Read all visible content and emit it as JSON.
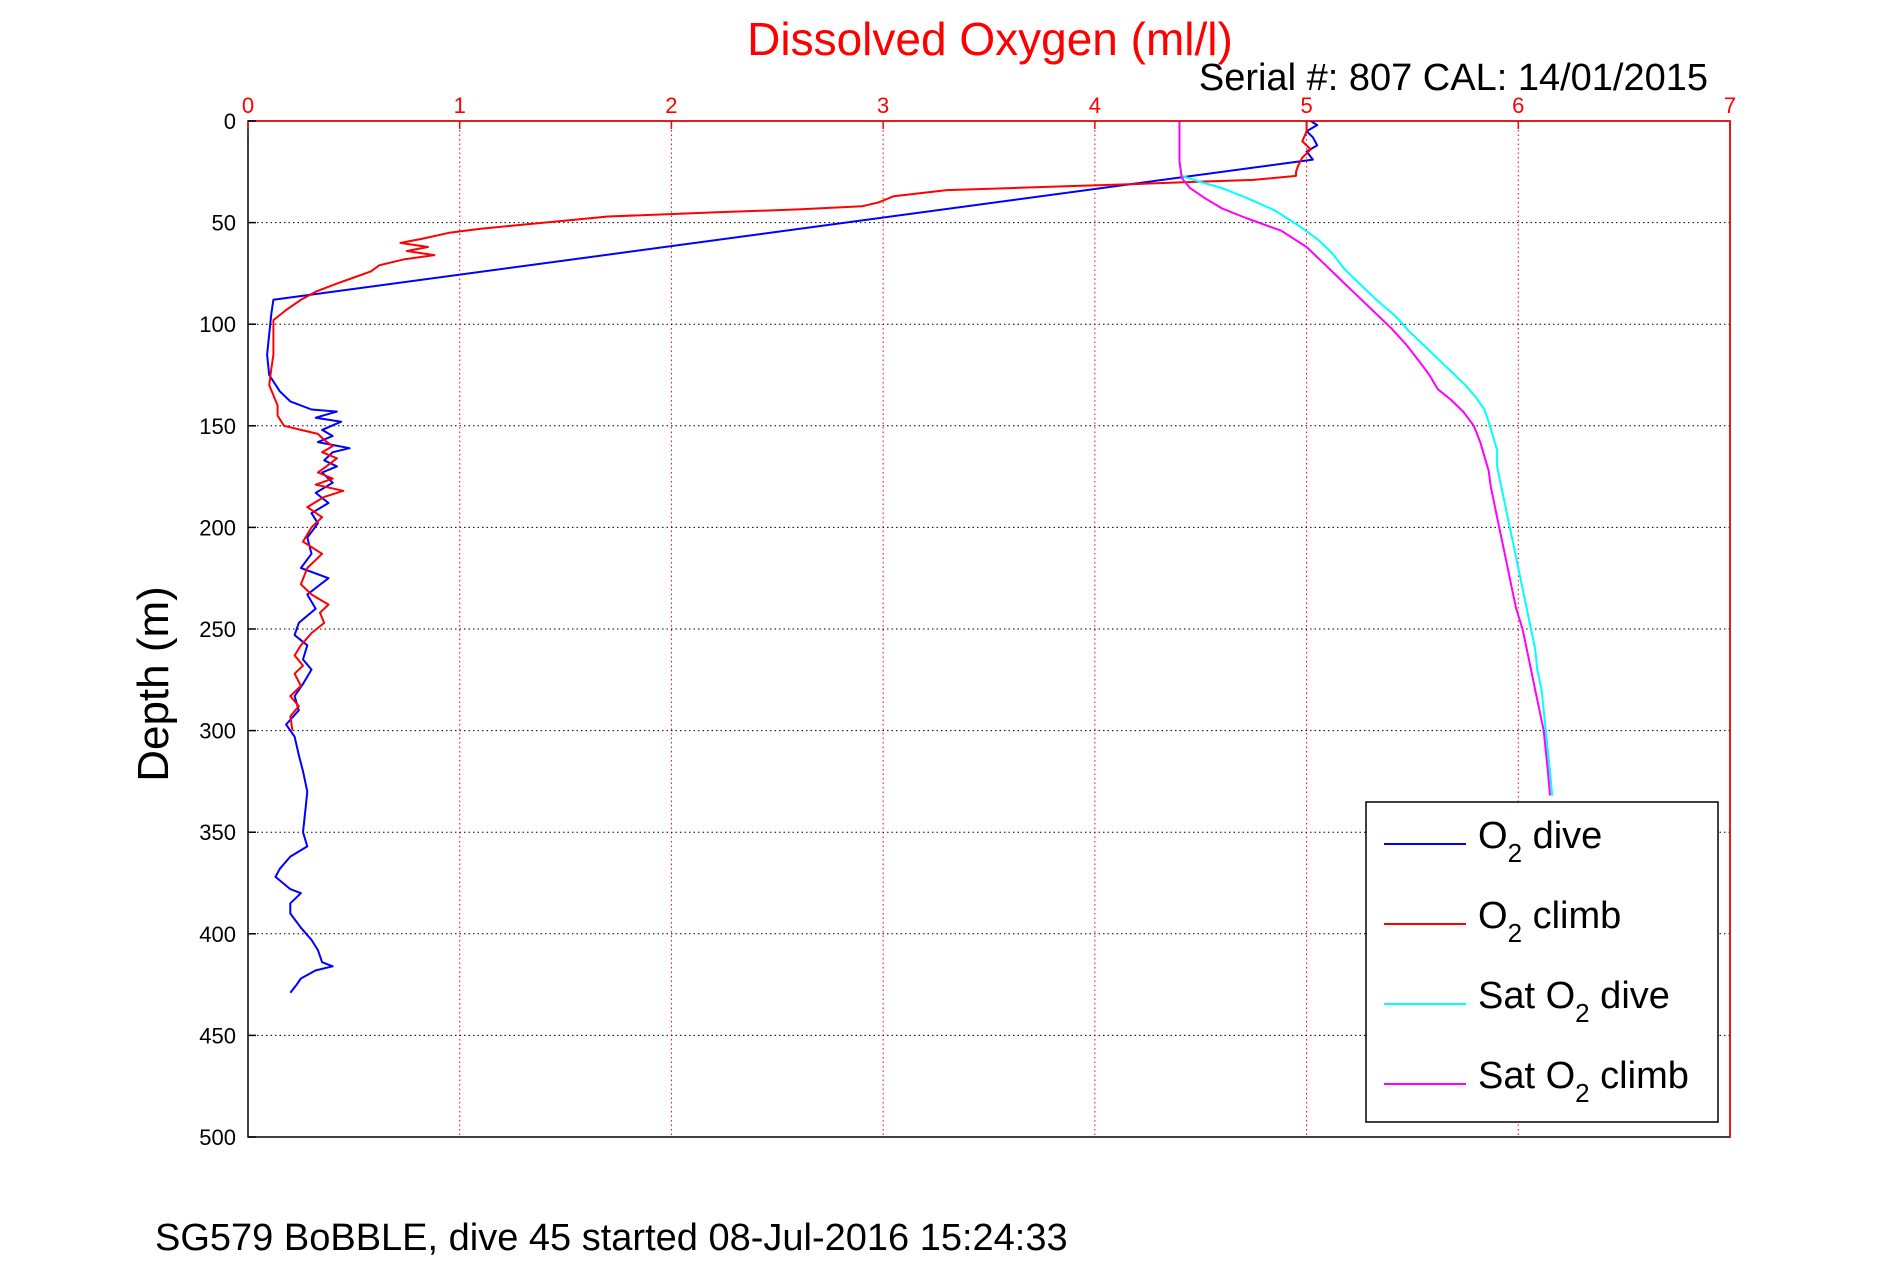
{
  "chart_data": {
    "type": "line",
    "title": "Dissolved Oxygen (ml/l)",
    "serial_text": "Serial #: 807  CAL: 14/01/2015",
    "ylabel": "Depth (m)",
    "xlim": [
      0,
      7
    ],
    "ylim": [
      0,
      500
    ],
    "y_reversed": true,
    "x_axis_position": "top",
    "xticks": [
      "0",
      "1",
      "2",
      "3",
      "4",
      "5",
      "6",
      "7"
    ],
    "yticks": [
      "0",
      "50",
      "100",
      "150",
      "200",
      "250",
      "300",
      "350",
      "400",
      "450",
      "500"
    ],
    "grid": true,
    "footer": "SG579 BoBBLE, dive 45 started 08-Jul-2016 15:24:33",
    "legend_position": "bottom-right",
    "legend": [
      {
        "prefix": "O",
        "sub": "2",
        "suffix": " dive",
        "color": "#0000ff"
      },
      {
        "prefix": "O",
        "sub": "2",
        "suffix": " climb",
        "color": "#ff0000"
      },
      {
        "prefix": "Sat O",
        "sub": "2",
        "suffix": " dive",
        "color": "#00ffff"
      },
      {
        "prefix": "Sat O",
        "sub": "2",
        "suffix": " climb",
        "color": "#ff00ff"
      }
    ],
    "series": [
      {
        "name": "O2 dive",
        "color": "#0000ff",
        "points": [
          [
            5.02,
            0
          ],
          [
            5.05,
            2
          ],
          [
            5.0,
            5
          ],
          [
            5.03,
            8
          ],
          [
            5.05,
            12
          ],
          [
            5.0,
            15
          ],
          [
            5.03,
            19
          ],
          [
            0.12,
            88
          ],
          [
            0.11,
            95
          ],
          [
            0.1,
            105
          ],
          [
            0.09,
            115
          ],
          [
            0.1,
            125
          ],
          [
            0.15,
            133
          ],
          [
            0.2,
            138
          ],
          [
            0.3,
            142
          ],
          [
            0.42,
            143
          ],
          [
            0.32,
            146
          ],
          [
            0.44,
            148
          ],
          [
            0.35,
            152
          ],
          [
            0.4,
            155
          ],
          [
            0.33,
            158
          ],
          [
            0.48,
            161
          ],
          [
            0.4,
            163
          ],
          [
            0.36,
            167
          ],
          [
            0.42,
            170
          ],
          [
            0.35,
            173
          ],
          [
            0.4,
            178
          ],
          [
            0.32,
            183
          ],
          [
            0.38,
            188
          ],
          [
            0.3,
            193
          ],
          [
            0.33,
            198
          ],
          [
            0.28,
            205
          ],
          [
            0.3,
            213
          ],
          [
            0.25,
            220
          ],
          [
            0.38,
            225
          ],
          [
            0.28,
            233
          ],
          [
            0.32,
            240
          ],
          [
            0.24,
            247
          ],
          [
            0.22,
            253
          ],
          [
            0.28,
            258
          ],
          [
            0.26,
            265
          ],
          [
            0.3,
            270
          ],
          [
            0.26,
            277
          ],
          [
            0.22,
            283
          ],
          [
            0.24,
            290
          ],
          [
            0.18,
            297
          ],
          [
            0.22,
            303
          ],
          [
            0.24,
            312
          ],
          [
            0.26,
            320
          ],
          [
            0.28,
            330
          ],
          [
            0.27,
            340
          ],
          [
            0.26,
            350
          ],
          [
            0.28,
            357
          ],
          [
            0.2,
            362
          ],
          [
            0.15,
            368
          ],
          [
            0.13,
            372
          ],
          [
            0.2,
            378
          ],
          [
            0.25,
            380
          ],
          [
            0.2,
            385
          ],
          [
            0.2,
            390
          ],
          [
            0.25,
            397
          ],
          [
            0.3,
            403
          ],
          [
            0.33,
            408
          ],
          [
            0.35,
            414
          ],
          [
            0.4,
            416
          ],
          [
            0.32,
            418
          ],
          [
            0.25,
            422
          ],
          [
            0.23,
            425
          ],
          [
            0.2,
            429
          ]
        ]
      },
      {
        "name": "O2 climb",
        "color": "#ff0000",
        "points": [
          [
            5.0,
            0
          ],
          [
            5.0,
            5
          ],
          [
            4.98,
            10
          ],
          [
            5.02,
            14
          ],
          [
            4.98,
            18
          ],
          [
            4.96,
            22
          ],
          [
            4.95,
            25
          ],
          [
            4.95,
            27
          ],
          [
            4.75,
            29
          ],
          [
            4.45,
            30
          ],
          [
            4.2,
            31
          ],
          [
            3.9,
            32
          ],
          [
            3.6,
            33
          ],
          [
            3.3,
            34
          ],
          [
            3.05,
            37
          ],
          [
            2.98,
            40
          ],
          [
            2.9,
            42
          ],
          [
            2.6,
            43.5
          ],
          [
            2.2,
            45
          ],
          [
            1.95,
            46
          ],
          [
            1.7,
            47
          ],
          [
            1.5,
            49
          ],
          [
            1.3,
            51
          ],
          [
            1.1,
            53
          ],
          [
            0.95,
            55
          ],
          [
            0.82,
            58
          ],
          [
            0.72,
            60
          ],
          [
            0.85,
            62
          ],
          [
            0.75,
            64
          ],
          [
            0.88,
            66
          ],
          [
            0.74,
            68
          ],
          [
            0.62,
            71
          ],
          [
            0.58,
            74
          ],
          [
            0.5,
            77
          ],
          [
            0.42,
            80
          ],
          [
            0.32,
            84
          ],
          [
            0.25,
            88
          ],
          [
            0.18,
            93
          ],
          [
            0.12,
            98
          ],
          [
            0.12,
            105
          ],
          [
            0.12,
            115
          ],
          [
            0.11,
            122
          ],
          [
            0.1,
            130
          ],
          [
            0.12,
            135
          ],
          [
            0.14,
            140
          ],
          [
            0.14,
            145
          ],
          [
            0.17,
            150
          ],
          [
            0.25,
            152
          ],
          [
            0.33,
            154
          ],
          [
            0.36,
            157
          ],
          [
            0.4,
            160
          ],
          [
            0.35,
            163
          ],
          [
            0.42,
            166
          ],
          [
            0.37,
            170
          ],
          [
            0.33,
            173
          ],
          [
            0.4,
            176
          ],
          [
            0.32,
            179
          ],
          [
            0.45,
            182
          ],
          [
            0.36,
            185
          ],
          [
            0.28,
            190
          ],
          [
            0.35,
            195
          ],
          [
            0.3,
            200
          ],
          [
            0.26,
            207
          ],
          [
            0.35,
            213
          ],
          [
            0.28,
            220
          ],
          [
            0.25,
            228
          ],
          [
            0.3,
            233
          ],
          [
            0.38,
            238
          ],
          [
            0.34,
            242
          ],
          [
            0.36,
            247
          ],
          [
            0.3,
            252
          ],
          [
            0.25,
            258
          ],
          [
            0.22,
            263
          ],
          [
            0.26,
            268
          ],
          [
            0.22,
            272
          ],
          [
            0.25,
            278
          ],
          [
            0.2,
            283
          ],
          [
            0.24,
            288
          ],
          [
            0.2,
            293
          ],
          [
            0.21,
            300
          ]
        ]
      },
      {
        "name": "Sat O2 dive",
        "color": "#00ffff",
        "points": [
          [
            4.4,
            0
          ],
          [
            4.4,
            10
          ],
          [
            4.4,
            20
          ],
          [
            4.41,
            27
          ],
          [
            4.5,
            30
          ],
          [
            4.6,
            33
          ],
          [
            4.72,
            38
          ],
          [
            4.85,
            44
          ],
          [
            4.97,
            52
          ],
          [
            5.05,
            58
          ],
          [
            5.12,
            65
          ],
          [
            5.18,
            73
          ],
          [
            5.25,
            80
          ],
          [
            5.33,
            88
          ],
          [
            5.42,
            96
          ],
          [
            5.48,
            103
          ],
          [
            5.55,
            110
          ],
          [
            5.62,
            117
          ],
          [
            5.68,
            123
          ],
          [
            5.75,
            130
          ],
          [
            5.8,
            136
          ],
          [
            5.84,
            142
          ],
          [
            5.86,
            148
          ],
          [
            5.88,
            155
          ],
          [
            5.9,
            162
          ],
          [
            5.9,
            170
          ],
          [
            5.92,
            180
          ],
          [
            5.94,
            190
          ],
          [
            5.96,
            200
          ],
          [
            5.98,
            210
          ],
          [
            6.0,
            220
          ],
          [
            6.02,
            230
          ],
          [
            6.04,
            240
          ],
          [
            6.06,
            250
          ],
          [
            6.08,
            260
          ],
          [
            6.09,
            270
          ],
          [
            6.11,
            280
          ],
          [
            6.12,
            290
          ],
          [
            6.13,
            300
          ],
          [
            6.14,
            310
          ],
          [
            6.15,
            320
          ],
          [
            6.16,
            332
          ]
        ]
      },
      {
        "name": "Sat O2 climb",
        "color": "#ff00ff",
        "points": [
          [
            4.4,
            0
          ],
          [
            4.4,
            10
          ],
          [
            4.4,
            20
          ],
          [
            4.41,
            28
          ],
          [
            4.45,
            33
          ],
          [
            4.52,
            38
          ],
          [
            4.6,
            43
          ],
          [
            4.72,
            48
          ],
          [
            4.88,
            54
          ],
          [
            5.0,
            62
          ],
          [
            5.08,
            70
          ],
          [
            5.16,
            78
          ],
          [
            5.24,
            86
          ],
          [
            5.32,
            94
          ],
          [
            5.4,
            102
          ],
          [
            5.47,
            110
          ],
          [
            5.53,
            118
          ],
          [
            5.58,
            125
          ],
          [
            5.62,
            132
          ],
          [
            5.68,
            137
          ],
          [
            5.74,
            143
          ],
          [
            5.79,
            150
          ],
          [
            5.82,
            158
          ],
          [
            5.84,
            165
          ],
          [
            5.86,
            172
          ],
          [
            5.87,
            180
          ],
          [
            5.89,
            190
          ],
          [
            5.91,
            200
          ],
          [
            5.93,
            210
          ],
          [
            5.95,
            220
          ],
          [
            5.97,
            230
          ],
          [
            5.99,
            240
          ],
          [
            6.02,
            250
          ],
          [
            6.04,
            260
          ],
          [
            6.06,
            270
          ],
          [
            6.08,
            280
          ],
          [
            6.1,
            290
          ],
          [
            6.12,
            300
          ],
          [
            6.13,
            310
          ],
          [
            6.14,
            320
          ],
          [
            6.15,
            332
          ]
        ]
      }
    ]
  }
}
